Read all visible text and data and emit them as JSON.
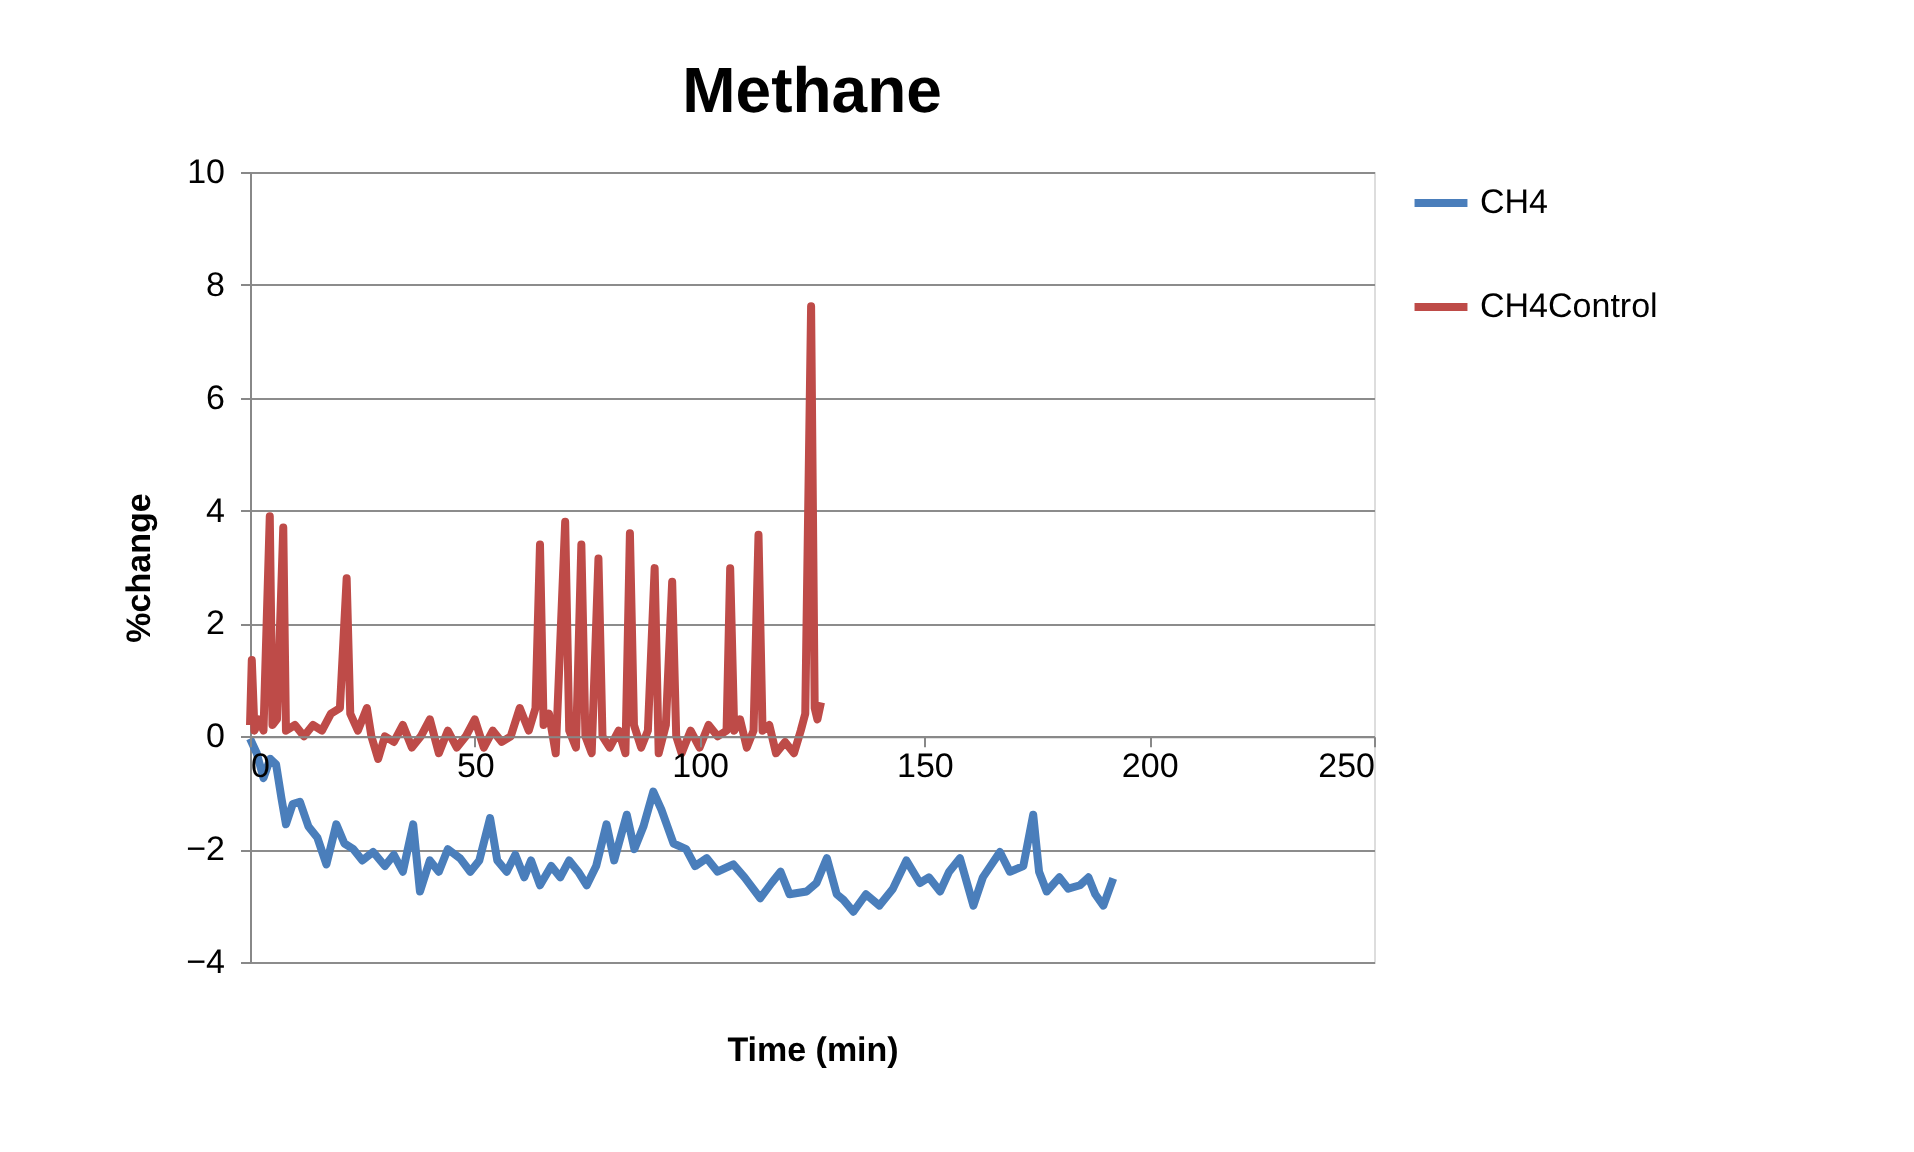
{
  "chart_data": {
    "type": "line",
    "title": "Methane",
    "xlabel": "Time (min)",
    "ylabel": "%change",
    "xlim": [
      0,
      250
    ],
    "xticks": [
      0,
      50,
      100,
      150,
      200,
      250
    ],
    "ylim": [
      -4,
      10
    ],
    "yticks": [
      -4,
      -2,
      0,
      2,
      4,
      6,
      8,
      10
    ],
    "grid": "y",
    "legend": "right",
    "marker": "none",
    "line_style": "solid",
    "series": [
      {
        "name": "CH4",
        "color": "#4a7ebb",
        "x": [
          0,
          1.5,
          3,
          4.5,
          5.8,
          7,
          8,
          9.5,
          11.1,
          13,
          15,
          17,
          19.2,
          21,
          23,
          25,
          27.4,
          30,
          32,
          34,
          36.3,
          37.8,
          40,
          42,
          44,
          46.7,
          49,
          51,
          53.4,
          55,
          57.1,
          59,
          61,
          62.5,
          64.5,
          67,
          69,
          71,
          73,
          74.9,
          77,
          79.3,
          81,
          83.8,
          85.5,
          87.5,
          89.7,
          91.5,
          94.2,
          97,
          99,
          101.6,
          104,
          107.5,
          110,
          113.5,
          116,
          118,
          120,
          123.8,
          126,
          128.3,
          130.5,
          132,
          134.2,
          137,
          140,
          143,
          146,
          149,
          151,
          153.5,
          155.5,
          157.9,
          160.9,
          163,
          166.8,
          169,
          172,
          174.2,
          175.5,
          177.2,
          180,
          182,
          184.6,
          186.5,
          188,
          189.8,
          192
        ],
        "values": [
          -0.04,
          -0.3,
          -0.74,
          -0.4,
          -0.5,
          -1.1,
          -1.56,
          -1.2,
          -1.16,
          -1.6,
          -1.8,
          -2.27,
          -1.56,
          -1.9,
          -2.0,
          -2.2,
          -2.05,
          -2.3,
          -2.1,
          -2.4,
          -1.56,
          -2.75,
          -2.2,
          -2.4,
          -2.0,
          -2.16,
          -2.4,
          -2.2,
          -1.45,
          -2.2,
          -2.4,
          -2.1,
          -2.5,
          -2.2,
          -2.64,
          -2.3,
          -2.5,
          -2.2,
          -2.4,
          -2.64,
          -2.3,
          -1.56,
          -2.2,
          -1.39,
          -2.0,
          -1.6,
          -0.98,
          -1.3,
          -1.9,
          -2.0,
          -2.3,
          -2.16,
          -2.4,
          -2.27,
          -2.5,
          -2.87,
          -2.6,
          -2.4,
          -2.8,
          -2.75,
          -2.6,
          -2.16,
          -2.8,
          -2.9,
          -3.11,
          -2.8,
          -3.0,
          -2.7,
          -2.2,
          -2.6,
          -2.5,
          -2.75,
          -2.4,
          -2.16,
          -3.0,
          -2.5,
          -2.05,
          -2.4,
          -2.3,
          -1.39,
          -2.4,
          -2.75,
          -2.5,
          -2.7,
          -2.64,
          -2.5,
          -2.8,
          -3.0,
          -2.52
        ]
      },
      {
        "name": "CH4Control",
        "color": "#be4b48",
        "x": [
          0,
          0.4,
          1,
          2,
          3,
          4.4,
          5,
          6,
          7.4,
          8,
          10,
          12,
          14,
          16,
          18,
          20,
          21.5,
          22.3,
          24,
          26,
          27,
          28.5,
          30,
          32,
          34,
          36,
          38,
          40,
          42,
          44,
          46,
          48,
          50,
          52,
          54,
          56,
          58,
          60,
          62,
          63.5,
          64.5,
          65.3,
          66.5,
          68,
          70.1,
          71,
          72.5,
          73.7,
          74.6,
          76,
          77.5,
          78.4,
          80,
          82,
          83.5,
          84.5,
          85.4,
          87,
          88.5,
          90,
          90.9,
          92.5,
          93.9,
          94.8,
          96,
          98,
          100,
          102,
          104,
          106,
          106.8,
          107.7,
          109,
          110.5,
          112,
          113.1,
          114,
          115.5,
          117,
          119,
          121,
          122.5,
          123.5,
          124.8,
          125.6,
          126.2,
          127
        ],
        "values": [
          0.2,
          1.35,
          0.1,
          0.3,
          0.1,
          3.9,
          0.2,
          0.3,
          3.7,
          0.1,
          0.2,
          0.0,
          0.2,
          0.1,
          0.4,
          0.5,
          2.8,
          0.4,
          0.1,
          0.5,
          0.0,
          -0.4,
          0.0,
          -0.1,
          0.2,
          -0.2,
          0.0,
          0.3,
          -0.3,
          0.1,
          -0.2,
          0.0,
          0.3,
          -0.2,
          0.1,
          -0.1,
          0.0,
          0.5,
          0.1,
          0.5,
          3.4,
          0.2,
          0.4,
          -0.3,
          3.8,
          0.1,
          -0.2,
          3.4,
          0.0,
          -0.3,
          3.15,
          0.0,
          -0.2,
          0.1,
          -0.3,
          3.6,
          0.2,
          -0.2,
          0.1,
          2.98,
          -0.3,
          0.2,
          2.74,
          0.0,
          -0.3,
          0.1,
          -0.2,
          0.2,
          0.0,
          0.1,
          2.98,
          0.1,
          0.3,
          -0.2,
          0.1,
          3.57,
          0.1,
          0.2,
          -0.3,
          -0.1,
          -0.3,
          0.1,
          0.4,
          7.62,
          0.5,
          0.3,
          0.6
        ]
      }
    ]
  }
}
